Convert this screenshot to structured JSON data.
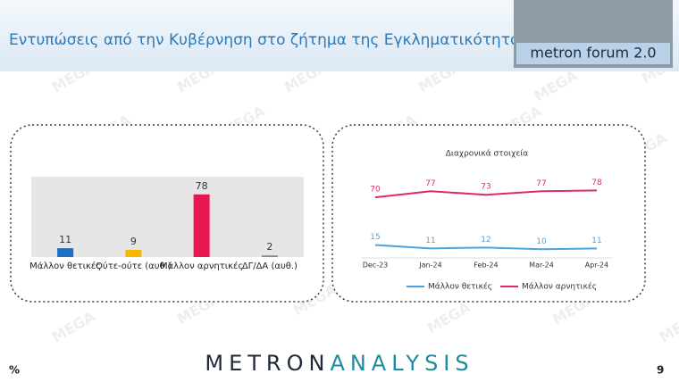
{
  "header": {
    "title": "Εντυπώσεις από την Κυβέρνηση στο ζήτημα της Εγκληματικότητας",
    "logo": "metron forum 2.0"
  },
  "watermark": "MEGA",
  "chart_data": [
    {
      "type": "bar",
      "categories": [
        "Μάλλον θετικές",
        "Ούτε-ούτε (αυθ.)",
        "Μάλλον αρνητικές",
        "ΔΓ/ΔΑ (αυθ.)"
      ],
      "values": [
        11,
        9,
        78,
        2
      ],
      "colors": [
        "#1f6fc0",
        "#f5b800",
        "#e8174f",
        "#8a8a8a"
      ],
      "ylim": [
        0,
        100
      ]
    },
    {
      "type": "line",
      "title": "Διαχρονικά στοιχεία",
      "categories": [
        "Dec-23",
        "Jan-24",
        "Feb-24",
        "Mar-24",
        "Apr-24"
      ],
      "series": [
        {
          "name": "Μάλλον θετικές",
          "color": "#4da3e0",
          "values": [
            15,
            11,
            12,
            10,
            11
          ]
        },
        {
          "name": "Μάλλον αρνητικές",
          "color": "#e0286a",
          "values": [
            70,
            77,
            73,
            77,
            78
          ]
        }
      ],
      "ylim": [
        0,
        100
      ],
      "legend": "bottom"
    }
  ],
  "footer": {
    "unit": "%",
    "brand": [
      "METRON",
      "ANALYSIS"
    ],
    "page": "9"
  }
}
